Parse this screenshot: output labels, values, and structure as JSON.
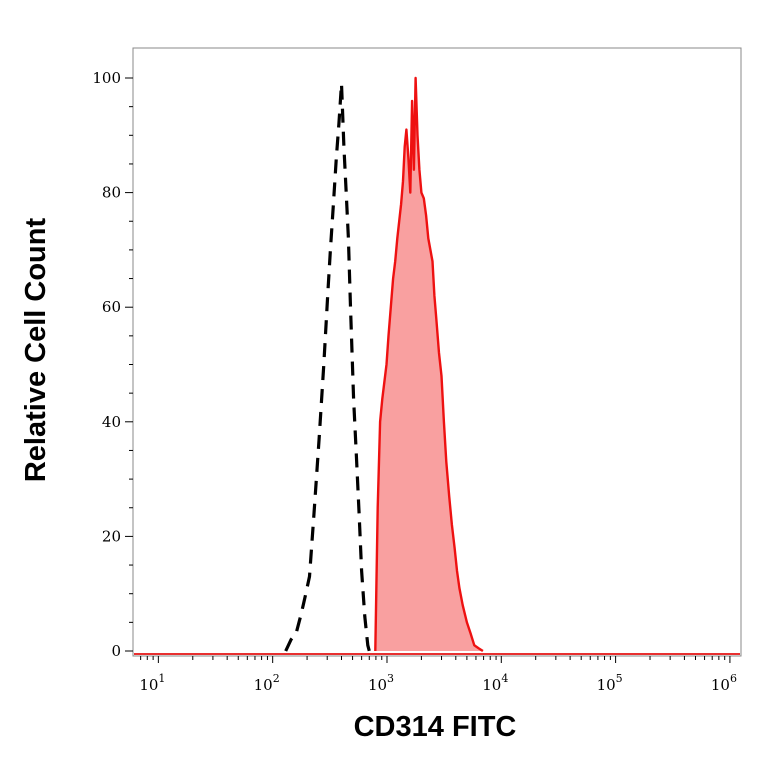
{
  "chart_data": {
    "type": "area",
    "title": "",
    "xlabel": "CD314 FITC",
    "ylabel": "Relative Cell Count",
    "x_scale": "log",
    "xlim": [
      6,
      1250000
    ],
    "ylim": [
      0,
      100
    ],
    "grid": false,
    "x_ticks": [
      {
        "base": "10",
        "exp": "1",
        "value": 10
      },
      {
        "base": "10",
        "exp": "2",
        "value": 100
      },
      {
        "base": "10",
        "exp": "3",
        "value": 1000
      },
      {
        "base": "10",
        "exp": "4",
        "value": 10000
      },
      {
        "base": "10",
        "exp": "5",
        "value": 100000
      },
      {
        "base": "10",
        "exp": "6",
        "value": 1000000
      }
    ],
    "y_ticks": [
      {
        "label": "0",
        "value": 0
      },
      {
        "label": "20",
        "value": 20
      },
      {
        "label": "40",
        "value": 40
      },
      {
        "label": "60",
        "value": 60
      },
      {
        "label": "80",
        "value": 80
      },
      {
        "label": "100",
        "value": 100
      }
    ],
    "series": [
      {
        "style": "dashed",
        "fill": false,
        "color": "#000000",
        "x": [
          130,
          145,
          160,
          175,
          185,
          195,
          210,
          230,
          255,
          280,
          305,
          320,
          340,
          360,
          380,
          400,
          420,
          440,
          460,
          480,
          510,
          540,
          570,
          600,
          640,
          680,
          700
        ],
        "y": [
          0,
          2,
          3,
          6,
          8,
          10,
          13,
          24,
          37,
          50,
          63,
          70,
          78,
          86,
          92,
          99,
          88,
          80,
          72,
          60,
          44,
          34,
          24,
          14,
          6,
          1,
          0
        ]
      },
      {
        "style": "solid",
        "fill": true,
        "color": "#ee1111",
        "fill_color": "#f9a0a0",
        "x": [
          790,
          830,
          870,
          910,
          950,
          990,
          1030,
          1080,
          1130,
          1180,
          1230,
          1280,
          1330,
          1380,
          1430,
          1480,
          1540,
          1600,
          1660,
          1720,
          1780,
          1850,
          1920,
          2000,
          2100,
          2200,
          2300,
          2400,
          2500,
          2600,
          2700,
          2850,
          3000,
          3150,
          3300,
          3500,
          3700,
          3900,
          4100,
          4300,
          4600,
          5000,
          5400,
          5800,
          6300,
          6900
        ],
        "y": [
          0,
          25,
          40,
          44,
          47,
          50,
          55,
          60,
          65,
          68,
          72,
          75,
          78,
          82,
          88,
          91,
          86,
          80,
          96,
          84,
          100,
          90,
          84,
          80,
          79,
          76,
          72,
          70,
          68,
          62,
          58,
          52,
          48,
          40,
          33,
          27,
          22,
          18,
          14,
          11,
          8,
          5,
          3,
          1,
          0.5,
          0
        ]
      }
    ]
  }
}
